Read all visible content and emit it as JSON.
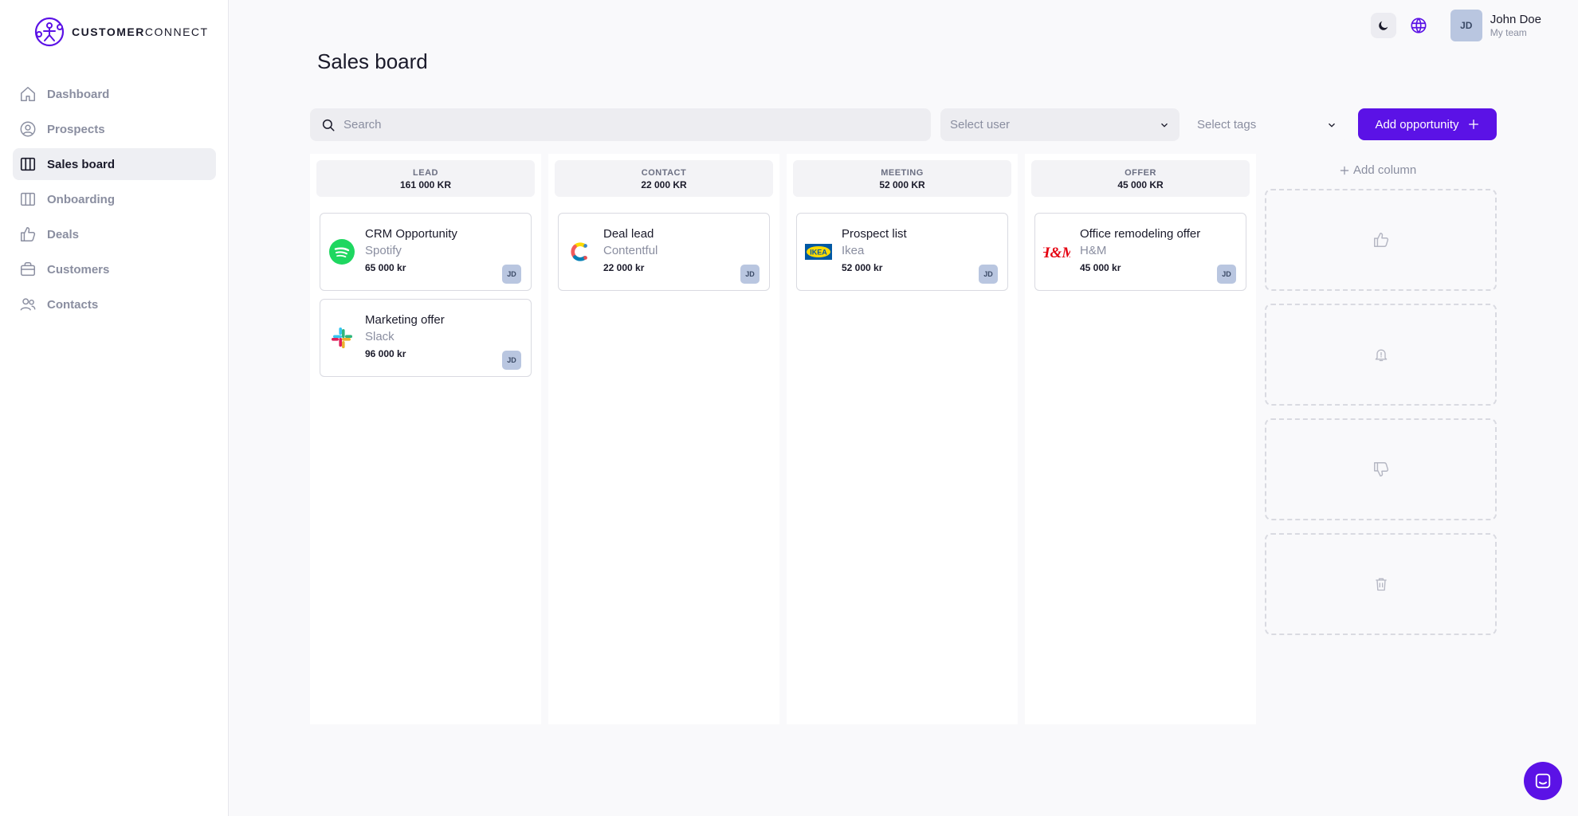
{
  "brand": {
    "name_bold": "CUSTOMER",
    "name_light": "CONNECT",
    "accent": "#5b12e6"
  },
  "sidebar": {
    "items": [
      {
        "label": "Dashboard",
        "icon": "home-icon",
        "active": false
      },
      {
        "label": "Prospects",
        "icon": "user-circle-icon",
        "active": false
      },
      {
        "label": "Sales board",
        "icon": "columns-icon",
        "active": true
      },
      {
        "label": "Onboarding",
        "icon": "columns-icon",
        "active": false
      },
      {
        "label": "Deals",
        "icon": "thumbs-up-icon",
        "active": false
      },
      {
        "label": "Customers",
        "icon": "briefcase-icon",
        "active": false
      },
      {
        "label": "Contacts",
        "icon": "users-icon",
        "active": false
      }
    ]
  },
  "header": {
    "user": {
      "initials": "JD",
      "name": "John Doe",
      "team": "My team"
    }
  },
  "page": {
    "title": "Sales board"
  },
  "toolbar": {
    "search_placeholder": "Search",
    "select_user": "Select user",
    "select_tags": "Select tags",
    "add_opportunity": "Add opportunity"
  },
  "board": {
    "columns": [
      {
        "title": "LEAD",
        "total": "161 000 KR",
        "cards": [
          {
            "title": "CRM Opportunity",
            "company": "Spotify",
            "amount": "65 000 kr",
            "owner": "JD",
            "logo": "spotify-logo"
          },
          {
            "title": "Marketing offer",
            "company": "Slack",
            "amount": "96 000 kr",
            "owner": "JD",
            "logo": "slack-logo"
          }
        ]
      },
      {
        "title": "CONTACT",
        "total": "22 000 KR",
        "cards": [
          {
            "title": "Deal lead",
            "company": "Contentful",
            "amount": "22 000 kr",
            "owner": "JD",
            "logo": "contentful-logo"
          }
        ]
      },
      {
        "title": "MEETING",
        "total": "52 000 KR",
        "cards": [
          {
            "title": "Prospect list",
            "company": "Ikea",
            "amount": "52 000 kr",
            "owner": "JD",
            "logo": "ikea-logo",
            "logo_text": "IKEA"
          }
        ]
      },
      {
        "title": "OFFER",
        "total": "45 000 KR",
        "cards": [
          {
            "title": "Office remodeling offer",
            "company": "H&M",
            "amount": "45 000 kr",
            "owner": "JD",
            "logo": "hm-logo",
            "logo_text": "H&M"
          }
        ]
      }
    ],
    "add_column": "Add column",
    "drop_zones": [
      "thumbs-up-icon",
      "bell-icon",
      "thumbs-down-icon",
      "trash-icon"
    ]
  }
}
